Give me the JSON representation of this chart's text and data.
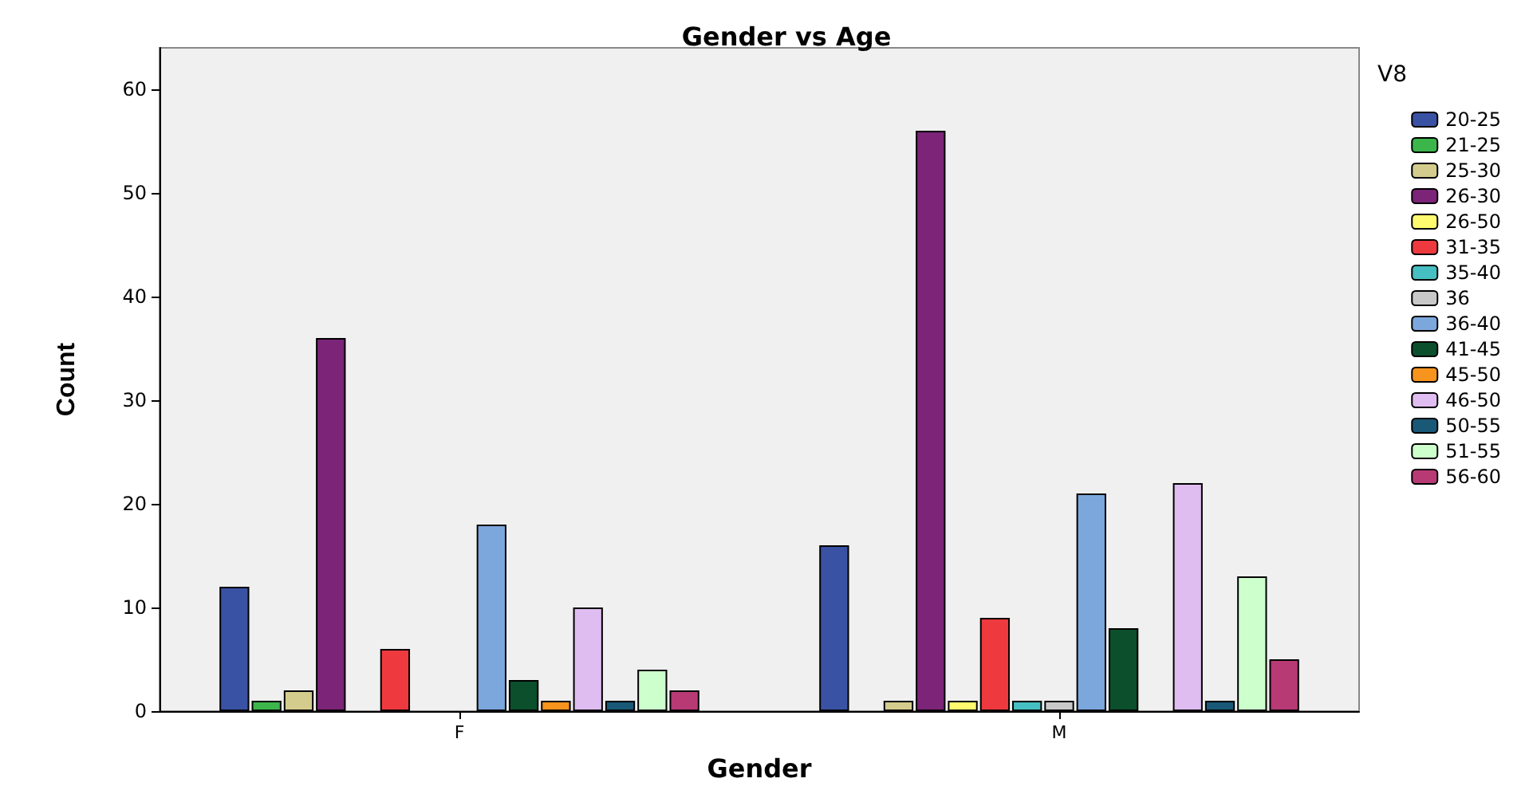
{
  "chart_data": {
    "type": "bar",
    "title": "Gender vs Age",
    "xlabel": "Gender",
    "ylabel": "Count",
    "legend_title": "V8",
    "categories": [
      "F",
      "M"
    ],
    "ylim": [
      0,
      64
    ],
    "yticks": [
      0,
      10,
      20,
      30,
      40,
      50,
      60
    ],
    "grid": false,
    "legend": "right",
    "series": [
      {
        "name": "20-25",
        "color": "#3a52a4",
        "values": [
          12,
          16
        ]
      },
      {
        "name": "21-25",
        "color": "#3cb54a",
        "values": [
          1,
          null
        ]
      },
      {
        "name": "25-30",
        "color": "#d4cc8c",
        "values": [
          2,
          1
        ]
      },
      {
        "name": "26-30",
        "color": "#7b2478",
        "values": [
          36,
          56
        ]
      },
      {
        "name": "26-50",
        "color": "#fffa6e",
        "values": [
          null,
          1
        ]
      },
      {
        "name": "31-35",
        "color": "#ee3a3e",
        "values": [
          6,
          9
        ]
      },
      {
        "name": "35-40",
        "color": "#46bfc3",
        "values": [
          null,
          1
        ]
      },
      {
        "name": "36",
        "color": "#c8c8c8",
        "values": [
          null,
          1
        ]
      },
      {
        "name": "36-40",
        "color": "#7ba7dc",
        "values": [
          18,
          21
        ]
      },
      {
        "name": "41-45",
        "color": "#0b4f2c",
        "values": [
          3,
          8
        ]
      },
      {
        "name": "45-50",
        "color": "#f7941d",
        "values": [
          1,
          null
        ]
      },
      {
        "name": "46-50",
        "color": "#dfbdf0",
        "values": [
          10,
          22
        ]
      },
      {
        "name": "50-55",
        "color": "#1a5878",
        "values": [
          1,
          1
        ]
      },
      {
        "name": "51-55",
        "color": "#ccffcc",
        "values": [
          4,
          13
        ]
      },
      {
        "name": "56-60",
        "color": "#b83a74",
        "values": [
          2,
          5
        ]
      }
    ]
  }
}
